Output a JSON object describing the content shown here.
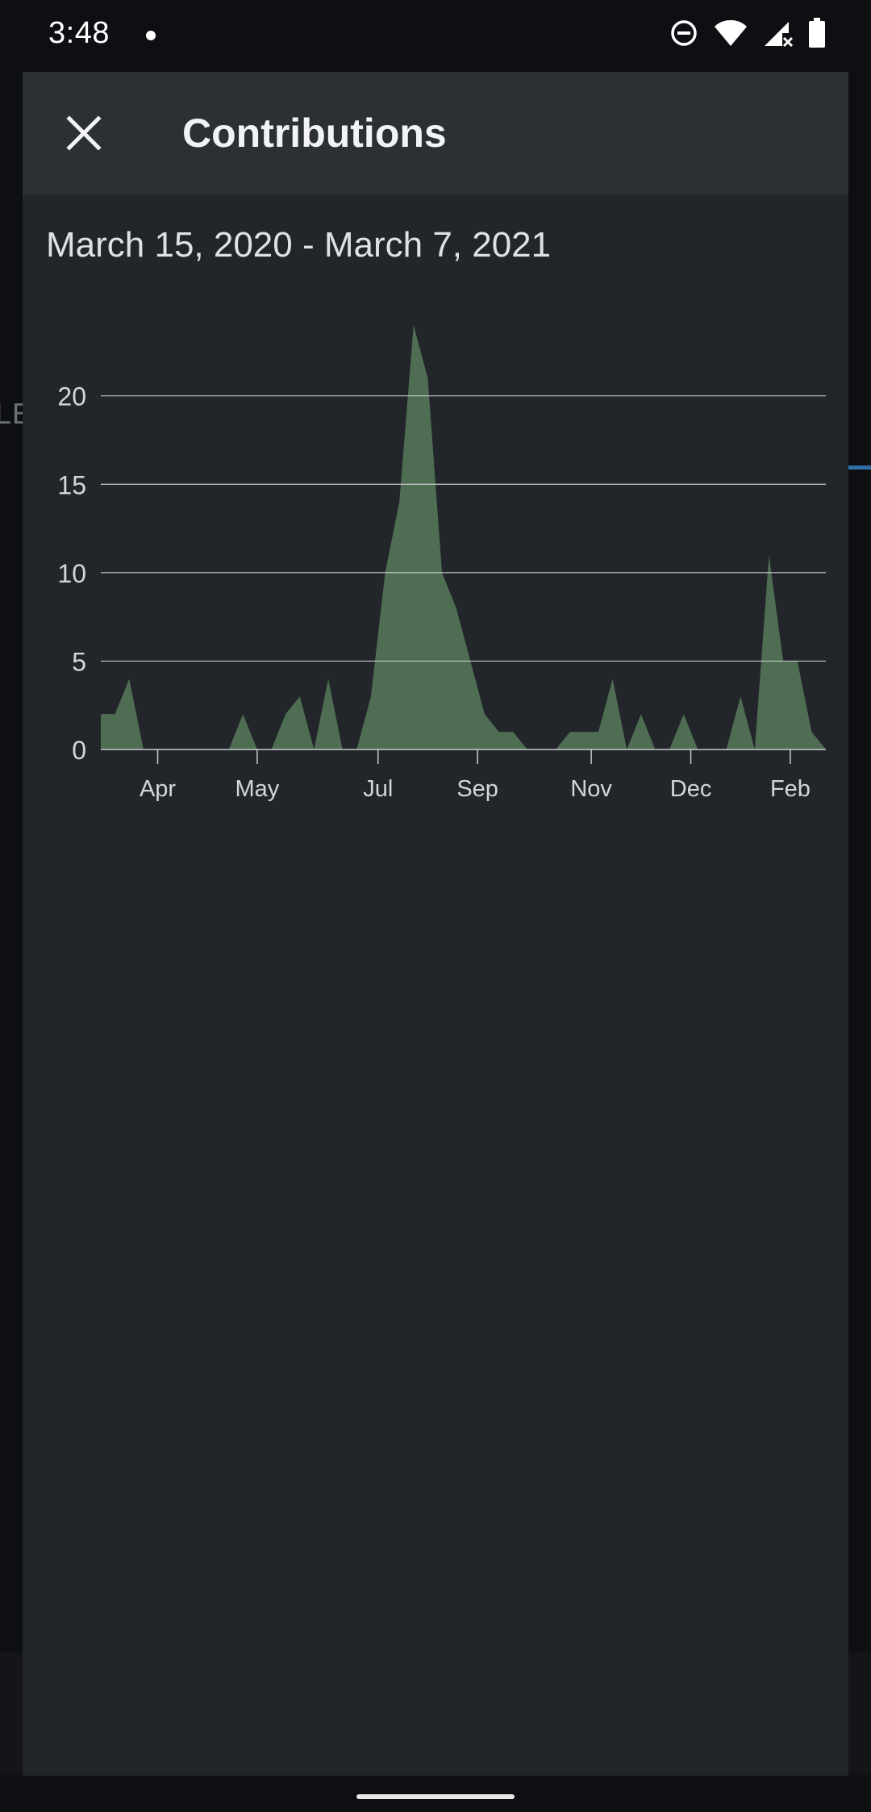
{
  "status_bar": {
    "time": "3:48",
    "icons": [
      "dnd-icon",
      "wifi-icon",
      "signal-icon",
      "battery-icon"
    ]
  },
  "background": {
    "partial_text": "LE"
  },
  "dialog": {
    "title": "Contributions",
    "close_icon": "close-icon",
    "date_range": "March 15, 2020 - March 7, 2021"
  },
  "colors": {
    "area_fill": "#4e6d52",
    "grid": "#c8cacc",
    "axis_text": "#d4d6d9",
    "dialog_bg": "#22252a",
    "header_bg": "#2c2f34"
  },
  "chart_data": {
    "type": "area",
    "title": "",
    "xlabel": "",
    "ylabel": "",
    "ylim": [
      0,
      24
    ],
    "y_ticks": [
      0,
      5,
      10,
      15,
      20
    ],
    "x_ticks": [
      {
        "label": "Apr",
        "x": 4
      },
      {
        "label": "May",
        "x": 11
      },
      {
        "label": "Jul",
        "x": 19.5
      },
      {
        "label": "Sep",
        "x": 26.5
      },
      {
        "label": "Nov",
        "x": 34.5
      },
      {
        "label": "Dec",
        "x": 41.5
      },
      {
        "label": "Feb",
        "x": 48.5
      }
    ],
    "xlim": [
      0,
      51
    ],
    "grid": true,
    "series": [
      {
        "x": [
          0,
          1,
          2,
          3,
          4,
          5,
          6,
          7,
          8,
          9,
          10,
          11,
          12,
          13,
          14,
          15,
          16,
          17,
          18,
          19,
          20,
          21,
          22,
          23,
          24,
          25,
          26,
          27,
          28,
          29,
          30,
          31,
          32,
          33,
          34,
          35,
          36,
          37,
          38,
          39,
          40,
          41,
          42,
          43,
          44,
          45,
          46,
          47,
          48,
          49,
          50,
          51
        ],
        "values": [
          2,
          2,
          4,
          0,
          0,
          0,
          0,
          0,
          0,
          0,
          2,
          0,
          0,
          2,
          3,
          0,
          4,
          0,
          0,
          3,
          10,
          14,
          24,
          21,
          10,
          8,
          5,
          2,
          1,
          1,
          0,
          0,
          0,
          1,
          1,
          1,
          4,
          0,
          2,
          0,
          0,
          2,
          0,
          0,
          0,
          3,
          0,
          11,
          5,
          5,
          1,
          0
        ]
      }
    ]
  }
}
